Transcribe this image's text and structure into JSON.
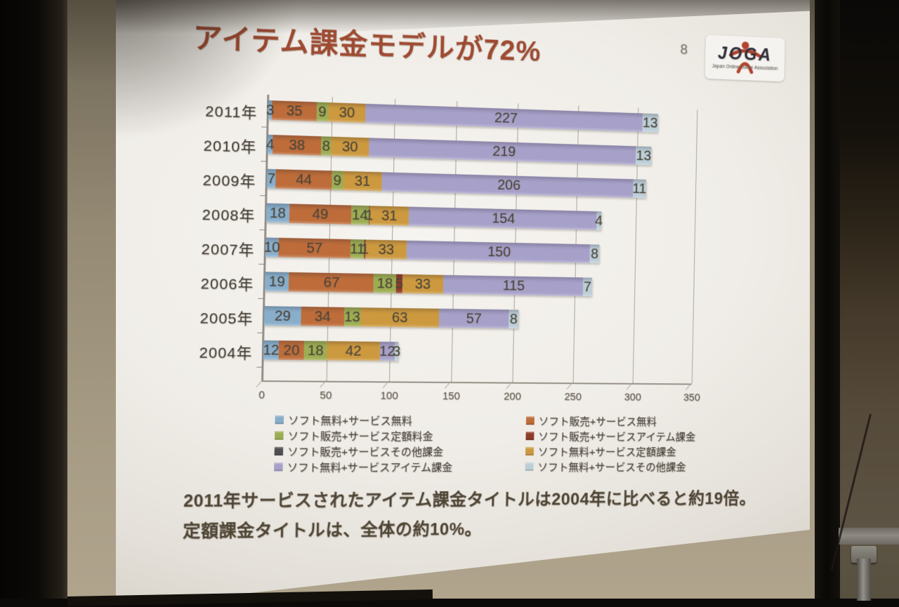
{
  "slide": {
    "title": "アイテム課金モデルが72%",
    "page_number": "8",
    "logo": {
      "text": "JOGA",
      "subtext": "Japan Online Game Association"
    },
    "note_line1": "2011年サービスされたアイテム課金タイトルは2004年に比べると約19倍。",
    "note_line2": "定額課金タイトルは、全体の約10%。",
    "colors": {
      "title": "#9e4a31"
    }
  },
  "chart_data": {
    "type": "bar",
    "orientation": "horizontal",
    "stacked": true,
    "categories": [
      "2011年",
      "2010年",
      "2009年",
      "2008年",
      "2007年",
      "2006年",
      "2005年",
      "2004年"
    ],
    "xlim": [
      0,
      350
    ],
    "x_ticks": [
      0,
      50,
      100,
      150,
      200,
      250,
      300,
      350
    ],
    "grid": true,
    "legend_position": "bottom-two-columns",
    "series": [
      {
        "name": "ソフト無料+サービス無料",
        "color": "#88aecb",
        "values": [
          3,
          4,
          7,
          18,
          10,
          19,
          29,
          12
        ]
      },
      {
        "name": "ソフト販売+サービス無料",
        "color": "#bd6c3a",
        "values": [
          35,
          38,
          44,
          49,
          57,
          67,
          34,
          20
        ]
      },
      {
        "name": "ソフト販売+サービス定額料金",
        "color": "#9cad52",
        "values": [
          9,
          8,
          9,
          14,
          11,
          18,
          13,
          18
        ]
      },
      {
        "name": "ソフト販売+サービスアイテム課金",
        "color": "#8e3c2a",
        "values": [
          0,
          0,
          0,
          1,
          1,
          5,
          0,
          0
        ]
      },
      {
        "name": "ソフト販売+サービスその他課金",
        "color": "#4f4f4f",
        "values": [
          0,
          0,
          0,
          0,
          0,
          0,
          0,
          0
        ]
      },
      {
        "name": "ソフト無料+サービス定額課金",
        "color": "#cc993f",
        "values": [
          30,
          30,
          31,
          31,
          33,
          33,
          63,
          42
        ]
      },
      {
        "name": "ソフト無料+サービスアイテム課金",
        "color": "#a7a1c9",
        "values": [
          227,
          219,
          206,
          154,
          150,
          115,
          57,
          12
        ]
      },
      {
        "name": "ソフト無料+サービスその他課金",
        "color": "#bccfd8",
        "values": [
          13,
          13,
          11,
          4,
          8,
          7,
          8,
          3
        ]
      }
    ],
    "legend_columns": [
      [
        0,
        2,
        4,
        6
      ],
      [
        1,
        3,
        5,
        7
      ]
    ]
  }
}
